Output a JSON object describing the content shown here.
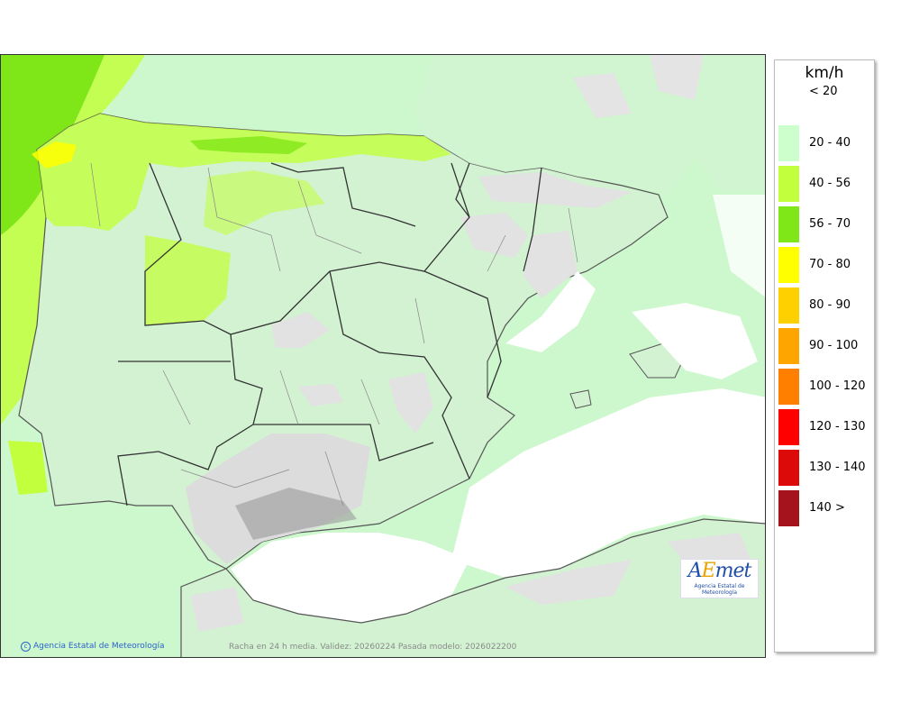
{
  "legend": {
    "unit": "km/h",
    "items": [
      {
        "label": "< 20",
        "color": null
      },
      {
        "label": "20 - 40",
        "color": "#ccffcc"
      },
      {
        "label": "40 - 56",
        "color": "#c2ff3c"
      },
      {
        "label": "56 - 70",
        "color": "#7fe617"
      },
      {
        "label": "70 - 80",
        "color": "#ffff00"
      },
      {
        "label": "80 - 90",
        "color": "#ffd000"
      },
      {
        "label": "90 - 100",
        "color": "#ffa500"
      },
      {
        "label": "100 - 120",
        "color": "#ff8000"
      },
      {
        "label": "120 - 130",
        "color": "#ff0000"
      },
      {
        "label": "130 - 140",
        "color": "#dd0a0a"
      },
      {
        "label": "140 >",
        "color": "#a5131d"
      }
    ]
  },
  "footer": {
    "credit": "Agencia Estatal de Meteorología",
    "validity": "Racha en 24 h media. Validez: 20260224 Pasada modelo: 2026022200"
  },
  "logo": {
    "mark_a": "A",
    "mark_e": "E",
    "mark_rest": "met",
    "subtitle": "Agencia Estatal de Meteorología"
  },
  "map_colors": {
    "sea_low": "#cdf7cd",
    "land_low": "#d2f2d2",
    "wind_40_56": "#c2ff3c",
    "wind_56_70": "#7fe617",
    "wind_70_80": "#ffff00",
    "calm": "#e6e6e6",
    "no_data": "#ffffff",
    "border": "#333333"
  }
}
